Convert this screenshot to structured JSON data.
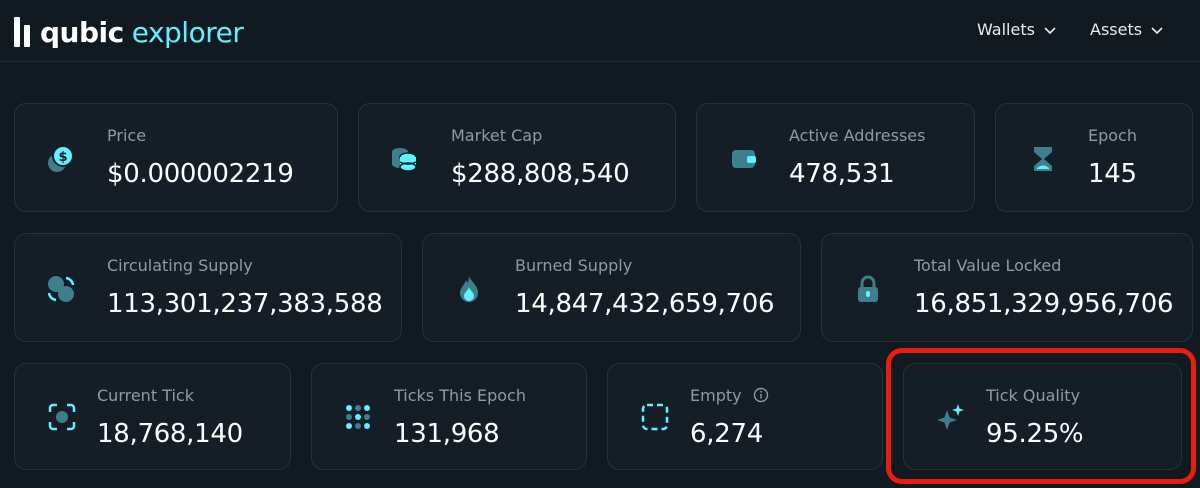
{
  "header": {
    "logo_word1": "qubic",
    "logo_word2": "explorer",
    "nav": {
      "wallets": "Wallets",
      "assets": "Assets"
    }
  },
  "stats": {
    "price": {
      "label": "Price",
      "value": "$0.000002219",
      "icon": "coins-dollar-icon"
    },
    "market_cap": {
      "label": "Market Cap",
      "value": "$288,808,540",
      "icon": "coin-stack-icon"
    },
    "active_addresses": {
      "label": "Active Addresses",
      "value": "478,531",
      "icon": "wallet-icon"
    },
    "epoch": {
      "label": "Epoch",
      "value": "145",
      "icon": "hourglass-icon"
    },
    "circulating_supply": {
      "label": "Circulating Supply",
      "value": "113,301,237,383,588",
      "icon": "circulating-coins-icon"
    },
    "burned_supply": {
      "label": "Burned Supply",
      "value": "14,847,432,659,706",
      "icon": "flame-icon"
    },
    "total_value_locked": {
      "label": "Total Value Locked",
      "value": "16,851,329,956,706",
      "icon": "lock-icon"
    },
    "current_tick": {
      "label": "Current Tick",
      "value": "18,768,140",
      "icon": "focus-target-icon"
    },
    "ticks_this_epoch": {
      "label": "Ticks This Epoch",
      "value": "131,968",
      "icon": "dot-grid-icon"
    },
    "empty": {
      "label": "Empty",
      "value": "6,274",
      "icon": "dashed-square-icon"
    },
    "tick_quality": {
      "label": "Tick Quality",
      "value": "95.25%",
      "icon": "sparkles-icon"
    }
  },
  "colors": {
    "background": "#111921",
    "card": "#151e27",
    "accent": "#61f0fe",
    "icon_teal": "#3e7f8c",
    "label": "#8e9aa8",
    "highlight": "#e81d0f"
  }
}
